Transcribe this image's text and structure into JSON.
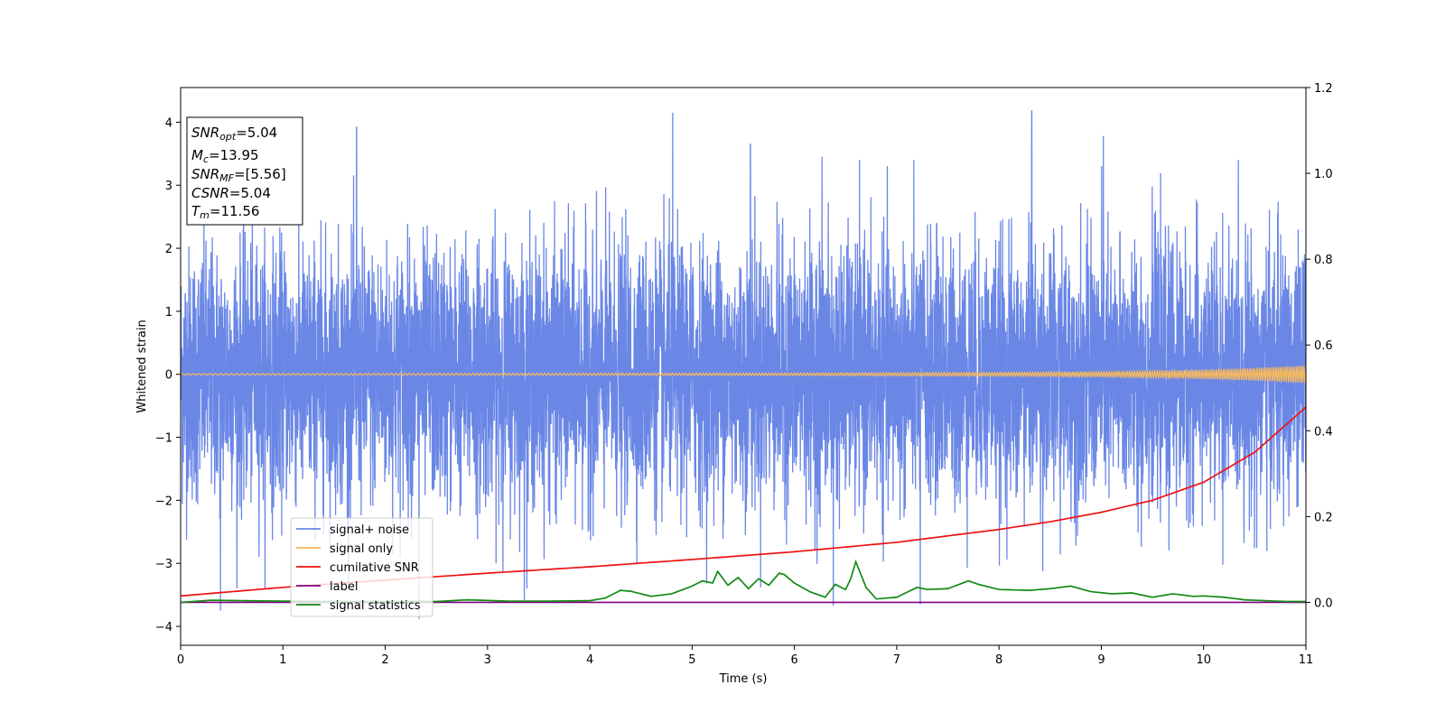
{
  "chart_data": {
    "type": "line",
    "title": "",
    "xlabel": "Time (s)",
    "ylabel": "Whitened strain",
    "xlim": [
      0,
      11
    ],
    "ylim": [
      -4.3,
      4.55
    ],
    "y2lim": [
      -0.1,
      1.2
    ],
    "x_ticks": [
      0,
      1,
      2,
      3,
      4,
      5,
      6,
      7,
      8,
      9,
      10,
      11
    ],
    "y_ticks": [
      -4,
      -3,
      -2,
      -1,
      0,
      1,
      2,
      3,
      4
    ],
    "y2_ticks": [
      "0.0",
      "0.2",
      "0.4",
      "0.6",
      "0.8",
      "1.0",
      "1.2"
    ],
    "grid": false,
    "legend_position": "lower-left",
    "annotation": {
      "lines": [
        {
          "main": "SNR",
          "sub": "opt",
          "value": "=5.04"
        },
        {
          "main": "M",
          "sub": "c",
          "value": "=13.95"
        },
        {
          "main": "SNR",
          "sub": "MF",
          "value": "=[5.56]"
        },
        {
          "main": "CSNR",
          "sub": "",
          "value": "=5.04"
        },
        {
          "main": "T",
          "sub": "m",
          "value": "=11.56"
        }
      ]
    },
    "series": [
      {
        "name": "signal+ noise",
        "color": "#6a87e6",
        "axis": "left",
        "description_values": {
          "min": -3.9,
          "max": 4.18,
          "approx_std": 1.0
        },
        "peaks": [
          {
            "x": 1.72,
            "y": 3.92
          },
          {
            "x": 4.81,
            "y": 4.15
          },
          {
            "x": 8.32,
            "y": 4.18
          },
          {
            "x": 5.57,
            "y": 3.65
          },
          {
            "x": 9.02,
            "y": 3.78
          },
          {
            "x": 6.27,
            "y": 3.45
          },
          {
            "x": 7.23,
            "y": 3.4
          },
          {
            "x": 2.33,
            "y": -3.88
          },
          {
            "x": 0.39,
            "y": -3.75
          },
          {
            "x": 3.36,
            "y": -3.58
          },
          {
            "x": 6.38,
            "y": -3.67
          },
          {
            "x": 7.23,
            "y": -3.65
          }
        ]
      },
      {
        "name": "signal only",
        "color": "#f5b860",
        "axis": "left",
        "x": [
          0,
          6,
          8,
          9,
          10,
          10.5,
          11
        ],
        "amplitude": [
          0.01,
          0.02,
          0.03,
          0.04,
          0.07,
          0.1,
          0.14
        ]
      },
      {
        "name": "cumilative SNR",
        "color": "#ee1111",
        "axis": "right",
        "x": [
          0,
          1,
          2,
          3,
          4,
          5,
          6,
          7,
          8,
          8.5,
          9,
          9.5,
          10,
          10.5,
          11
        ],
        "values": [
          0.015,
          0.035,
          0.052,
          0.068,
          0.083,
          0.1,
          0.118,
          0.14,
          0.17,
          0.188,
          0.21,
          0.238,
          0.28,
          0.35,
          0.455
        ]
      },
      {
        "name": "label",
        "color": "#800080",
        "axis": "right",
        "x": [
          0,
          11
        ],
        "values": [
          0,
          0
        ]
      },
      {
        "name": "signal statistics",
        "color": "#138a13",
        "axis": "right",
        "x": [
          0,
          0.3,
          0.6,
          1.0,
          1.5,
          2.0,
          2.5,
          2.8,
          3.2,
          3.6,
          4.0,
          4.15,
          4.3,
          4.4,
          4.6,
          4.8,
          5.0,
          5.1,
          5.2,
          5.25,
          5.35,
          5.45,
          5.55,
          5.65,
          5.75,
          5.85,
          5.9,
          6.0,
          6.15,
          6.3,
          6.4,
          6.5,
          6.55,
          6.6,
          6.7,
          6.8,
          6.9,
          7.0,
          7.2,
          7.3,
          7.5,
          7.7,
          7.8,
          8.0,
          8.3,
          8.5,
          8.7,
          8.9,
          9.1,
          9.3,
          9.5,
          9.7,
          9.9,
          10.0,
          10.2,
          10.4,
          10.6,
          10.8,
          11.0
        ],
        "values": [
          0.0,
          0.005,
          0.004,
          0.003,
          0.002,
          0.002,
          0.002,
          0.006,
          0.003,
          0.003,
          0.004,
          0.01,
          0.028,
          0.026,
          0.014,
          0.02,
          0.038,
          0.05,
          0.045,
          0.072,
          0.04,
          0.058,
          0.032,
          0.055,
          0.04,
          0.068,
          0.065,
          0.045,
          0.025,
          0.012,
          0.042,
          0.03,
          0.055,
          0.095,
          0.035,
          0.008,
          0.01,
          0.012,
          0.035,
          0.03,
          0.032,
          0.05,
          0.042,
          0.03,
          0.028,
          0.032,
          0.038,
          0.025,
          0.02,
          0.022,
          0.012,
          0.02,
          0.014,
          0.015,
          0.012,
          0.006,
          0.004,
          0.002,
          0.002
        ]
      }
    ]
  }
}
